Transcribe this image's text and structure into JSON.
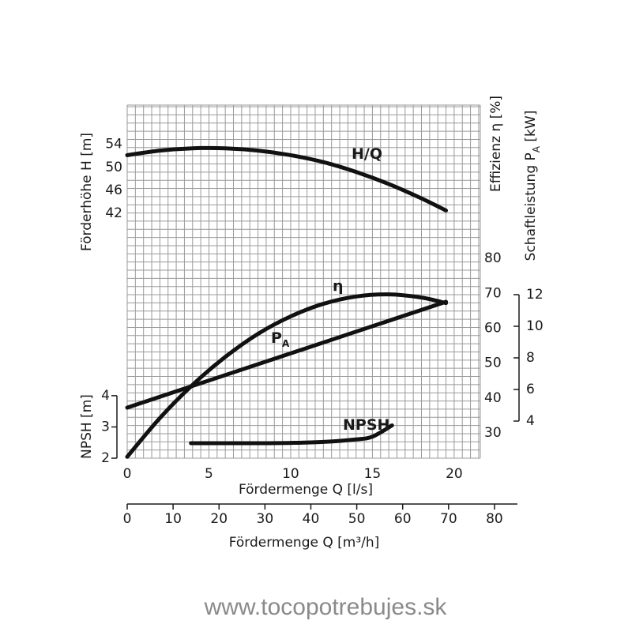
{
  "chart_data": {
    "type": "line",
    "xlabel": "Fördermenge Q [l/s]",
    "xlim": [
      0,
      21.6
    ],
    "xticks": [
      0,
      5,
      10,
      15,
      20
    ],
    "x2label": "Fördermenge Q [m³/h]",
    "x2lim": [
      0,
      85
    ],
    "x2ticks": [
      0,
      10,
      20,
      30,
      40,
      50,
      60,
      70,
      80
    ],
    "grid": true,
    "y_axes": [
      {
        "label": [
          "Förderhöhe H [m]"
        ],
        "lim": [
          -0.5,
          60.8
        ],
        "ticks": [
          42,
          46,
          50,
          54
        ]
      },
      {
        "label": [
          "Effizienz η [%]"
        ],
        "lim": [
          22.8,
          123.9
        ],
        "ticks": [
          30,
          40,
          50,
          60,
          70,
          80
        ]
      },
      {
        "label": [
          "Schaftleistung P",
          "A",
          " [kW]"
        ],
        "lim": [
          1.65,
          24
        ],
        "ticks": [
          4,
          6,
          8,
          10,
          12
        ]
      },
      {
        "label": [
          "NPSH [m]"
        ],
        "lim": [
          2,
          13.3
        ],
        "ticks": [
          2,
          3,
          4
        ]
      }
    ],
    "series": [
      {
        "name": "H/Q",
        "axis": 0,
        "color": "#111111",
        "x": [
          0,
          2,
          4,
          6,
          8,
          10,
          12,
          14,
          16,
          18,
          19.5
        ],
        "values": [
          52.1,
          52.9,
          53.3,
          53.3,
          52.9,
          52.1,
          50.9,
          49.2,
          47.1,
          44.6,
          42.5
        ]
      },
      {
        "name": "η",
        "axis": 1,
        "color": "#111111",
        "x": [
          0,
          2,
          4,
          6,
          8,
          10,
          12,
          14,
          16,
          18,
          19.5
        ],
        "values": [
          23.2,
          34.3,
          43.8,
          51.8,
          58.4,
          63.4,
          67.0,
          69.1,
          69.7,
          68.8,
          67.2
        ]
      },
      {
        "name": "P",
        "name_subscript": "A",
        "axis": 2,
        "color": "#111111",
        "x": [
          0,
          9.75,
          19.5
        ],
        "values": [
          4.85,
          8.2,
          11.55
        ]
      },
      {
        "name": "NPSH",
        "axis": 3,
        "color": "#111111",
        "x": [
          3.9,
          6,
          8,
          10,
          12,
          14,
          15,
          16.2
        ],
        "values": [
          2.48,
          2.48,
          2.48,
          2.49,
          2.52,
          2.6,
          2.69,
          3.05
        ]
      }
    ]
  },
  "watermark": "www.tocopotrebujes.sk"
}
